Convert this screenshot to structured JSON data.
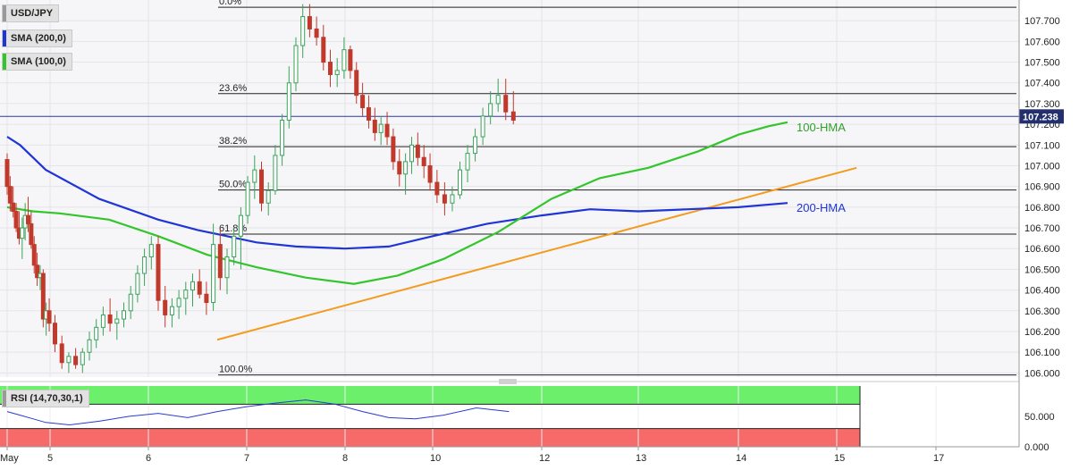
{
  "chart_data": {
    "type": "candlestick",
    "symbol": "USD/JPY",
    "x_tick_labels": [
      "May",
      "5",
      "6",
      "7",
      "8",
      "10",
      "12",
      "13",
      "14",
      "15",
      "17"
    ],
    "y_axis": {
      "ylim": [
        105.98,
        107.8
      ],
      "tick_labels": [
        "106.000",
        "106.100",
        "106.200",
        "106.300",
        "106.400",
        "106.500",
        "106.600",
        "106.700",
        "106.800",
        "106.900",
        "107.000",
        "107.100",
        "107.200",
        "107.300",
        "107.400",
        "107.500",
        "107.600",
        "107.700"
      ]
    },
    "current_price": 107.238,
    "current_price_label": "107.238",
    "fibonacci_levels": [
      {
        "label": "0.0%",
        "price": 107.765
      },
      {
        "label": "23.6%",
        "price": 107.348
      },
      {
        "label": "38.2%",
        "price": 107.092
      },
      {
        "label": "50.0%",
        "price": 106.883
      },
      {
        "label": "61.8%",
        "price": 106.67
      },
      {
        "label": "100.0%",
        "price": 105.99
      }
    ],
    "indicators": {
      "sma200_label": "SMA (200,0)",
      "sma100_label": "SMA (100,0)",
      "hma100_label": "100-HMA",
      "hma200_label": "200-HMA",
      "sma200_color": "#1f35d6",
      "sma100_color": "#33c52c",
      "trendline_color": "#f39b1e"
    },
    "hma200_series": [
      [
        0,
        107.14
      ],
      [
        0.3,
        107.1
      ],
      [
        0.9,
        106.98
      ],
      [
        1.5,
        106.84
      ],
      [
        2.1,
        106.74
      ],
      [
        2.5,
        106.69
      ],
      [
        3.1,
        106.63
      ],
      [
        3.5,
        106.61
      ],
      [
        4.0,
        106.6
      ],
      [
        4.5,
        106.61
      ],
      [
        5.0,
        106.66
      ],
      [
        5.5,
        106.72
      ],
      [
        6.0,
        106.76
      ],
      [
        6.5,
        106.79
      ],
      [
        7.0,
        106.78
      ],
      [
        7.5,
        106.79
      ],
      [
        8.0,
        106.8
      ],
      [
        8.5,
        106.82
      ]
    ],
    "hma100_series": [
      [
        0,
        106.8
      ],
      [
        0.6,
        106.78
      ],
      [
        1.1,
        106.77
      ],
      [
        1.6,
        106.74
      ],
      [
        2.1,
        106.66
      ],
      [
        2.6,
        106.57
      ],
      [
        3.1,
        106.51
      ],
      [
        3.6,
        106.46
      ],
      [
        4.1,
        106.43
      ],
      [
        4.6,
        106.47
      ],
      [
        5.1,
        106.55
      ],
      [
        5.6,
        106.68
      ],
      [
        6.1,
        106.84
      ],
      [
        6.6,
        106.94
      ],
      [
        7.1,
        106.99
      ],
      [
        7.6,
        107.07
      ],
      [
        8.0,
        107.15
      ],
      [
        8.3,
        107.19
      ],
      [
        8.5,
        107.21
      ]
    ],
    "trendline": [
      [
        2.7,
        106.16
      ],
      [
        9.2,
        106.99
      ]
    ],
    "candles": [
      [
        0,
        107.03,
        107.06,
        106.86,
        106.9
      ],
      [
        0.07,
        106.9,
        106.95,
        106.78,
        106.82
      ],
      [
        0.14,
        106.82,
        106.9,
        106.75,
        106.78
      ],
      [
        0.21,
        106.78,
        106.82,
        106.68,
        106.7
      ],
      [
        0.28,
        106.7,
        106.78,
        106.62,
        106.65
      ],
      [
        0.35,
        106.65,
        106.75,
        106.55,
        106.7
      ],
      [
        0.42,
        106.7,
        106.82,
        106.64,
        106.76
      ],
      [
        0.49,
        106.76,
        106.85,
        106.68,
        106.72
      ],
      [
        0.56,
        106.72,
        106.78,
        106.6,
        106.62
      ],
      [
        0.63,
        106.62,
        106.66,
        106.48,
        106.52
      ],
      [
        0.7,
        106.52,
        106.58,
        106.42,
        106.46
      ],
      [
        0.77,
        106.46,
        106.52,
        106.4,
        106.48
      ],
      [
        0.84,
        106.48,
        106.5,
        106.22,
        106.26
      ],
      [
        0.91,
        106.26,
        106.34,
        106.18,
        106.3
      ],
      [
        0.98,
        106.3,
        106.36,
        106.2,
        106.24
      ],
      [
        1.05,
        106.24,
        106.28,
        106.1,
        106.14
      ],
      [
        1.12,
        106.14,
        106.18,
        106.02,
        106.05
      ],
      [
        1.19,
        106.05,
        106.1,
        106.0,
        106.08
      ],
      [
        1.26,
        106.08,
        106.12,
        106.02,
        106.04
      ],
      [
        1.33,
        106.04,
        106.12,
        106.0,
        106.1
      ],
      [
        1.4,
        106.1,
        106.2,
        106.06,
        106.16
      ],
      [
        1.47,
        106.16,
        106.26,
        106.12,
        106.22
      ],
      [
        1.54,
        106.22,
        106.32,
        106.18,
        106.28
      ],
      [
        1.61,
        106.28,
        106.36,
        106.2,
        106.24
      ],
      [
        1.68,
        106.24,
        106.3,
        106.16,
        106.26
      ],
      [
        1.75,
        106.26,
        106.34,
        106.22,
        106.3
      ],
      [
        1.82,
        106.3,
        106.42,
        106.26,
        106.38
      ],
      [
        1.89,
        106.38,
        106.52,
        106.34,
        106.48
      ],
      [
        1.96,
        106.48,
        106.6,
        106.42,
        106.56
      ],
      [
        2.03,
        106.56,
        106.66,
        106.5,
        106.62
      ],
      [
        2.1,
        106.62,
        106.66,
        106.3,
        106.35
      ],
      [
        2.17,
        106.35,
        106.42,
        106.22,
        106.28
      ],
      [
        2.24,
        106.28,
        106.36,
        106.22,
        106.32
      ],
      [
        2.31,
        106.32,
        106.4,
        106.26,
        106.36
      ],
      [
        2.38,
        106.36,
        106.44,
        106.28,
        106.4
      ],
      [
        2.45,
        106.4,
        106.48,
        106.32,
        106.44
      ],
      [
        2.52,
        106.44,
        106.5,
        106.36,
        106.38
      ],
      [
        2.59,
        106.38,
        106.44,
        106.28,
        106.34
      ],
      [
        2.66,
        106.34,
        106.72,
        106.3,
        106.62
      ],
      [
        2.73,
        106.62,
        106.7,
        106.4,
        106.46
      ],
      [
        2.8,
        106.46,
        106.6,
        106.38,
        106.56
      ],
      [
        2.87,
        106.56,
        106.7,
        106.52,
        106.66
      ],
      [
        2.94,
        106.66,
        106.8,
        106.5,
        106.76
      ],
      [
        3.01,
        106.76,
        106.95,
        106.72,
        106.92
      ],
      [
        3.08,
        106.92,
        107.05,
        106.84,
        106.98
      ],
      [
        3.15,
        106.98,
        107.02,
        106.78,
        106.82
      ],
      [
        3.22,
        106.82,
        106.92,
        106.76,
        106.88
      ],
      [
        3.29,
        106.88,
        107.1,
        106.86,
        107.05
      ],
      [
        3.36,
        107.05,
        107.25,
        107.0,
        107.22
      ],
      [
        3.43,
        107.22,
        107.48,
        107.18,
        107.4
      ],
      [
        3.5,
        107.4,
        107.62,
        107.36,
        107.58
      ],
      [
        3.57,
        107.58,
        107.78,
        107.52,
        107.72
      ],
      [
        3.64,
        107.72,
        107.78,
        107.62,
        107.66
      ],
      [
        3.71,
        107.66,
        107.72,
        107.58,
        107.62
      ],
      [
        3.78,
        107.62,
        107.68,
        107.46,
        107.5
      ],
      [
        3.85,
        107.5,
        107.56,
        107.38,
        107.44
      ],
      [
        3.92,
        107.44,
        107.52,
        107.38,
        107.46
      ],
      [
        3.99,
        107.46,
        107.62,
        107.42,
        107.56
      ],
      [
        4.06,
        107.56,
        107.58,
        107.42,
        107.46
      ],
      [
        4.13,
        107.46,
        107.5,
        107.3,
        107.34
      ],
      [
        4.2,
        107.34,
        107.4,
        107.24,
        107.28
      ],
      [
        4.27,
        107.28,
        107.34,
        107.18,
        107.22
      ],
      [
        4.34,
        107.22,
        107.28,
        107.12,
        107.16
      ],
      [
        4.41,
        107.16,
        107.24,
        107.1,
        107.2
      ],
      [
        4.48,
        107.2,
        107.26,
        107.1,
        107.14
      ],
      [
        4.55,
        107.14,
        107.18,
        106.98,
        107.02
      ],
      [
        4.62,
        107.02,
        107.08,
        106.9,
        106.96
      ],
      [
        4.69,
        106.96,
        107.06,
        106.86,
        107.02
      ],
      [
        4.76,
        107.02,
        107.14,
        106.96,
        107.1
      ],
      [
        4.83,
        107.1,
        107.16,
        107.0,
        107.04
      ],
      [
        4.9,
        107.04,
        107.1,
        106.94,
        107.0
      ],
      [
        4.97,
        107.0,
        107.06,
        106.88,
        106.92
      ],
      [
        5.04,
        106.92,
        106.98,
        106.82,
        106.86
      ],
      [
        5.11,
        106.86,
        106.92,
        106.76,
        106.82
      ],
      [
        5.18,
        106.82,
        106.9,
        106.78,
        106.86
      ],
      [
        5.25,
        106.86,
        107.02,
        106.84,
        106.98
      ],
      [
        5.32,
        106.98,
        107.1,
        106.92,
        107.06
      ],
      [
        5.39,
        107.06,
        107.18,
        107.02,
        107.14
      ],
      [
        5.46,
        107.14,
        107.28,
        107.1,
        107.24
      ],
      [
        5.53,
        107.24,
        107.36,
        107.2,
        107.3
      ],
      [
        5.6,
        107.3,
        107.42,
        107.26,
        107.34
      ],
      [
        5.67,
        107.34,
        107.42,
        107.22,
        107.26
      ],
      [
        5.74,
        107.26,
        107.36,
        107.2,
        107.22
      ]
    ],
    "rsi": {
      "label": "RSI (14,70,30,1)",
      "ylim": [
        0,
        100
      ],
      "tick_labels": [
        "50.000",
        "0.000"
      ],
      "overbought": 70,
      "oversold": 30,
      "series": [
        [
          0,
          58
        ],
        [
          0.3,
          52
        ],
        [
          0.6,
          46
        ],
        [
          0.9,
          40
        ],
        [
          1.2,
          36
        ],
        [
          1.5,
          42
        ],
        [
          1.8,
          50
        ],
        [
          2.1,
          55
        ],
        [
          2.4,
          48
        ],
        [
          2.7,
          58
        ],
        [
          3.0,
          66
        ],
        [
          3.3,
          72
        ],
        [
          3.6,
          77
        ],
        [
          3.9,
          70
        ],
        [
          4.2,
          58
        ],
        [
          4.5,
          48
        ],
        [
          4.8,
          46
        ],
        [
          5.1,
          52
        ],
        [
          5.4,
          64
        ],
        [
          5.7,
          58
        ]
      ]
    }
  }
}
